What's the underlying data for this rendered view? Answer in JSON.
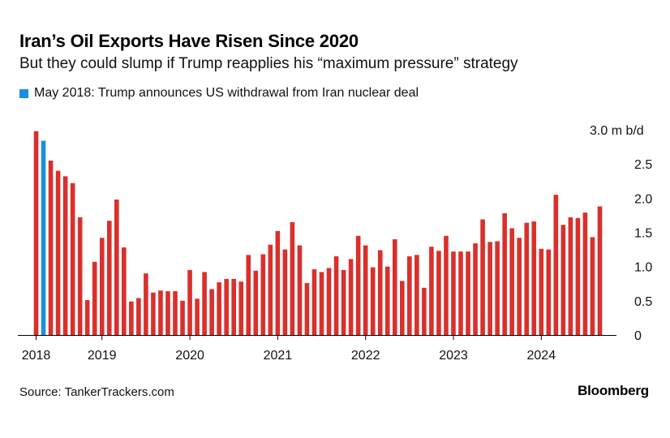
{
  "header": {
    "title": "Iran’s Oil Exports Have Risen Since 2020",
    "subtitle": "But they could slump if Trump reapplies his “maximum pressure” strategy"
  },
  "legend": {
    "label": "May 2018: Trump announces US withdrawal from Iran nuclear deal",
    "color": "#1a8fe0"
  },
  "footer": {
    "source": "Source: TankerTrackers.com",
    "brand": "Bloomberg"
  },
  "colors": {
    "bar": "#d9302c",
    "highlight": "#1a8fe0",
    "axis": "#000000",
    "grid": "#bbbbbb"
  },
  "chart_data": {
    "type": "bar",
    "unit": "m b/d",
    "ylim": [
      0,
      3.0
    ],
    "yticks": [
      0,
      0.5,
      1.0,
      1.5,
      2.0,
      2.5,
      3.0
    ],
    "ytick_labels": [
      "0",
      "0.5",
      "1.0",
      "1.5",
      "2.0",
      "2.5",
      "3.0 m b/d"
    ],
    "grid": false,
    "x_start": "2018-04",
    "xtick_labels": [
      {
        "label": "2018",
        "date": "2018-04"
      },
      {
        "label": "2019",
        "date": "2019-01"
      },
      {
        "label": "2020",
        "date": "2020-01"
      },
      {
        "label": "2021",
        "date": "2021-01"
      },
      {
        "label": "2022",
        "date": "2022-01"
      },
      {
        "label": "2023",
        "date": "2023-01"
      },
      {
        "label": "2024",
        "date": "2024-01"
      }
    ],
    "highlight": "2018-05",
    "values": [
      2.98,
      2.84,
      2.55,
      2.4,
      2.32,
      2.22,
      1.72,
      0.51,
      1.07,
      1.42,
      1.67,
      1.98,
      1.28,
      0.49,
      0.54,
      0.9,
      0.62,
      0.65,
      0.64,
      0.64,
      0.5,
      0.95,
      0.53,
      0.92,
      0.67,
      0.77,
      0.82,
      0.82,
      0.78,
      1.17,
      0.94,
      1.18,
      1.32,
      1.52,
      1.25,
      1.65,
      1.31,
      0.76,
      0.96,
      0.92,
      0.98,
      1.15,
      0.95,
      1.11,
      1.45,
      1.31,
      0.99,
      1.24,
      1.0,
      1.4,
      0.79,
      1.15,
      1.17,
      0.69,
      1.29,
      1.23,
      1.45,
      1.22,
      1.22,
      1.22,
      1.34,
      1.69,
      1.36,
      1.37,
      1.78,
      1.56,
      1.42,
      1.64,
      1.66,
      1.26,
      1.25,
      2.05,
      1.61,
      1.72,
      1.71,
      1.79,
      1.43,
      1.88
    ]
  }
}
